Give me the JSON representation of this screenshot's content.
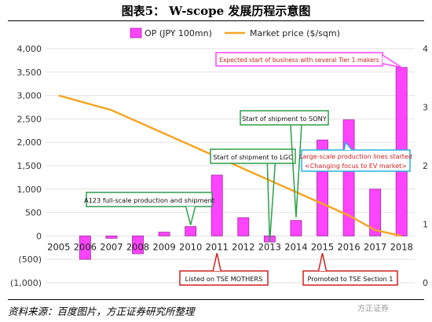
{
  "page": {
    "title": "图表5： W-scope 发展历程示意图",
    "source": "资料来源：百度图片，方正证券研究所整理",
    "watermark": "方正证券"
  },
  "colors": {
    "op": "#ff44ff",
    "op_border": "#9d2a9d",
    "market": "#f5a623",
    "green": "#2e9e4a",
    "red": "#d02020",
    "cyan": "#22b5d8",
    "grid": "#e2e2e2"
  },
  "chart_data": {
    "type": "bar",
    "categories": [
      "2005",
      "2006",
      "2007",
      "2008",
      "2009",
      "2010",
      "2011",
      "2012",
      "2013",
      "2014",
      "2015",
      "2016",
      "2017",
      "2018"
    ],
    "series": [
      {
        "name": "OP (JPY 100mn)",
        "type": "bar",
        "axis": "left",
        "values": [
          0,
          -500,
          -50,
          -380,
          80,
          200,
          1300,
          390,
          -130,
          330,
          2050,
          2480,
          1000,
          3600
        ]
      },
      {
        "name": "Market price ($/sqm)",
        "type": "line",
        "axis": "right",
        "values": [
          3.2,
          null,
          2.95,
          null,
          null,
          null,
          null,
          null,
          null,
          1.55,
          null,
          null,
          null,
          0.8
        ]
      }
    ],
    "y_left": {
      "ylim": [
        -1000,
        4000
      ],
      "ticks": [
        -1000,
        -500,
        0,
        500,
        1000,
        1500,
        2000,
        2500,
        3000,
        3500,
        4000
      ],
      "tick_labels": [
        "(1,000)",
        "(500)",
        "0",
        "500",
        "1,000",
        "1,500",
        "2,000",
        "2,500",
        "3,000",
        "3,500",
        "4,000"
      ]
    },
    "y_right": {
      "ylim": [
        0,
        4
      ],
      "ticks": [
        0,
        1,
        2,
        3,
        4
      ],
      "tick_labels": [
        "0",
        "1",
        "2",
        "3",
        "4"
      ]
    },
    "grid": true,
    "legend": "top-center",
    "annotations": [
      {
        "text": "A123 full-scale production and shipment",
        "color": "green",
        "year": "2010",
        "value": 200
      },
      {
        "text": "Start of shipment to LGC",
        "color": "green",
        "year": "2013",
        "value": -130
      },
      {
        "text": "Start of shipment to SONY",
        "color": "green",
        "year": "2014",
        "value": 330
      },
      {
        "text": "Listed on TSE MOTHERS",
        "color": "red",
        "year": "2011",
        "value": 0
      },
      {
        "text": "Promoted to TSE Section 1",
        "color": "red",
        "year": "2015",
        "value": 0
      },
      {
        "text": "Expected start of business with several Tier 1 makers",
        "color": "magenta",
        "year": "2018",
        "value": 3600
      },
      {
        "text": "Large-scale production lines started",
        "text2": "<Changing focus to EV market>",
        "color": "cyan",
        "year": "2016",
        "value": 2480
      }
    ]
  }
}
